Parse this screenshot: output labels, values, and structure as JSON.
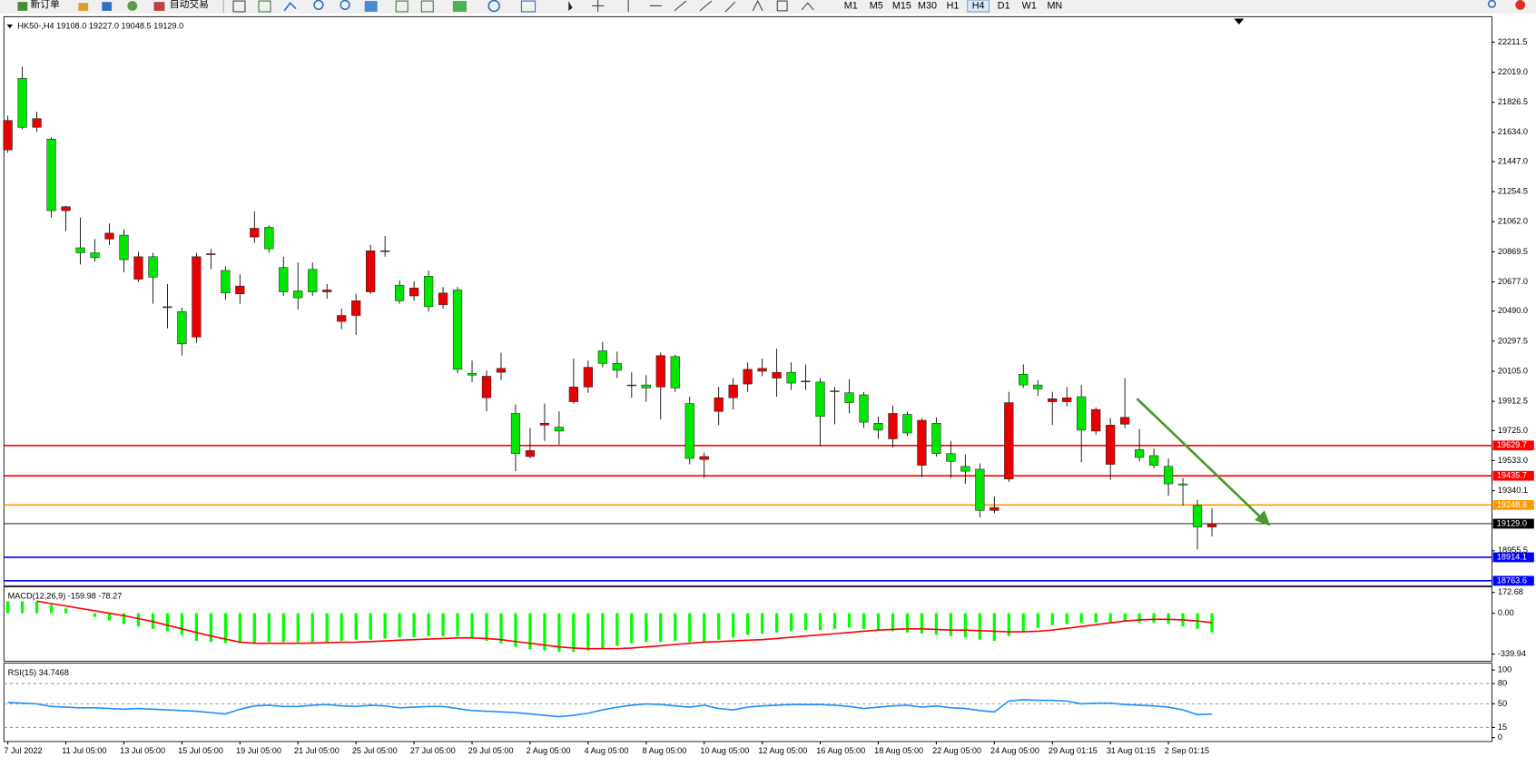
{
  "toolbar": {
    "new_order": "新订单",
    "auto_trading": "自动交易",
    "timeframes": [
      "M1",
      "M5",
      "M15",
      "M30",
      "H1",
      "H4",
      "D1",
      "W1",
      "MN"
    ],
    "active_timeframe": 5
  },
  "chart_data": [
    {
      "type": "candlestick",
      "title": "HK50-,H4  19108.0 19227.0 19048.5 19129.0",
      "bull_color": "#e60000",
      "bear_color": "#00e600",
      "ylim": [
        18731.7,
        22374.5
      ],
      "yticks": [
        22211.5,
        {
          "value": 22019,
          "label": "22019.0"
        },
        21826.5,
        {
          "value": 21634,
          "label": "21634.0"
        },
        {
          "value": 21447,
          "label": "21447.0"
        },
        21254.5,
        {
          "value": 21062,
          "label": "21062.0"
        },
        20869.5,
        {
          "value": 20677,
          "label": "20677.0"
        },
        {
          "value": 20490,
          "label": "20490.0"
        },
        20297.5,
        {
          "value": 20105,
          "label": "20105.0"
        },
        19912.5,
        {
          "value": 19725,
          "label": "19725.0"
        },
        {
          "value": 19533,
          "label": "19533.0"
        },
        19340.1,
        18955.5
      ],
      "levels": [
        {
          "value": 19629.7,
          "color": "#ff0000"
        },
        {
          "value": 19435.7,
          "color": "#ff0000"
        },
        {
          "value": 19248.8,
          "color": "#ff9900"
        },
        {
          "value": 19129,
          "label": "19129.0",
          "color": "#000000"
        },
        {
          "value": 18914.1,
          "color": "#0000ff"
        },
        {
          "value": 18763.6,
          "color": "#0000ff"
        }
      ],
      "categories": [
        "7 Jul 2022",
        null,
        null,
        null,
        "11 Jul 05:00",
        null,
        null,
        null,
        "13 Jul 05:00",
        null,
        null,
        null,
        "15 Jul 05:00",
        null,
        null,
        null,
        "19 Jul 05:00",
        null,
        null,
        null,
        "21 Jul 05:00",
        null,
        null,
        null,
        "25 Jul 05:00",
        null,
        null,
        null,
        "27 Jul 05:00",
        null,
        null,
        null,
        "29 Jul 05:00",
        null,
        null,
        null,
        "2 Aug 05:00",
        null,
        null,
        null,
        "4 Aug 05:00",
        null,
        null,
        null,
        "8 Aug 05:00",
        null,
        null,
        null,
        "10 Aug 05:00",
        null,
        null,
        null,
        "12 Aug 05:00",
        null,
        null,
        null,
        "16 Aug 05:00",
        null,
        null,
        null,
        "18 Aug 05:00",
        null,
        null,
        null,
        "22 Aug 05:00",
        null,
        null,
        null,
        "24 Aug 05:00",
        null,
        null,
        null,
        "29 Aug 01:15",
        null,
        null,
        null,
        "31 Aug 01:15",
        null,
        null,
        null,
        "2 Sep 01:15",
        null,
        null,
        null
      ],
      "ohlc": [
        [
          21522,
          21741,
          21503,
          21710
        ],
        [
          21979,
          22055,
          21653,
          21666
        ],
        [
          21666,
          21766,
          21635,
          21722
        ],
        [
          21591,
          21603,
          21089,
          21133
        ],
        [
          21133,
          21164,
          21001,
          21158
        ],
        [
          20895,
          21089,
          20788,
          20863
        ],
        [
          20863,
          20951,
          20807,
          20832
        ],
        [
          20951,
          21051,
          20913,
          20989
        ],
        [
          20976,
          21014,
          20738,
          20819
        ],
        [
          20694,
          20870,
          20675,
          20838
        ],
        [
          20838,
          20863,
          20537,
          20707
        ],
        [
          20512,
          20663,
          20380,
          20518
        ],
        [
          20487,
          20512,
          20205,
          20280
        ],
        [
          20324,
          20863,
          20286,
          20838
        ],
        [
          20851,
          20888,
          20757,
          20857
        ],
        [
          20750,
          20776,
          20562,
          20606
        ],
        [
          20600,
          20725,
          20537,
          20650
        ],
        [
          20964,
          21127,
          20926,
          21020
        ],
        [
          21026,
          21039,
          20863,
          20888
        ],
        [
          20769,
          20838,
          20587,
          20613
        ],
        [
          20619,
          20801,
          20500,
          20575
        ],
        [
          20757,
          20801,
          20587,
          20613
        ],
        [
          20613,
          20663,
          20569,
          20625
        ],
        [
          20424,
          20506,
          20374,
          20462
        ],
        [
          20462,
          20600,
          20337,
          20556
        ],
        [
          20613,
          20913,
          20600,
          20876
        ],
        [
          20876,
          20970,
          20838,
          20876
        ],
        [
          20656,
          20688,
          20537,
          20556
        ],
        [
          20587,
          20681,
          20556,
          20638
        ],
        [
          20713,
          20750,
          20487,
          20518
        ],
        [
          20531,
          20644,
          20506,
          20606
        ],
        [
          20625,
          20644,
          20092,
          20117
        ],
        [
          20092,
          20174,
          20036,
          20080
        ],
        [
          19935,
          20111,
          19848,
          20073
        ],
        [
          20098,
          20224,
          20048,
          20123
        ],
        [
          19835,
          19892,
          19465,
          19578
        ],
        [
          19559,
          19741,
          19547,
          19597
        ],
        [
          19760,
          19898,
          19659,
          19772
        ],
        [
          19747,
          19848,
          19634,
          19722
        ],
        [
          19910,
          20186,
          19898,
          20004
        ],
        [
          20004,
          20174,
          19967,
          20130
        ],
        [
          20236,
          20293,
          20130,
          20155
        ],
        [
          20155,
          20230,
          20061,
          20111
        ],
        [
          20017,
          20098,
          19935,
          20017
        ],
        [
          20017,
          20080,
          19910,
          19998
        ],
        [
          20004,
          20224,
          19797,
          20205
        ],
        [
          20199,
          20211,
          19973,
          19998
        ],
        [
          19898,
          19942,
          19509,
          19547
        ],
        [
          19540,
          19584,
          19421,
          19559
        ],
        [
          19848,
          20004,
          19760,
          19935
        ],
        [
          19935,
          20061,
          19860,
          20017
        ],
        [
          20023,
          20161,
          19973,
          20117
        ],
        [
          20105,
          20186,
          20073,
          20123
        ],
        [
          20061,
          20249,
          19942,
          20098
        ],
        [
          20098,
          20161,
          19986,
          20029
        ],
        [
          20042,
          20149,
          19986,
          20042
        ],
        [
          20036,
          20061,
          19628,
          19816
        ],
        [
          19979,
          20004,
          19766,
          19979
        ],
        [
          19967,
          20055,
          19835,
          19904
        ],
        [
          19954,
          19973,
          19741,
          19779
        ],
        [
          19772,
          19816,
          19672,
          19728
        ],
        [
          19672,
          19885,
          19616,
          19835
        ],
        [
          19829,
          19848,
          19691,
          19710
        ],
        [
          19503,
          19804,
          19428,
          19791
        ],
        [
          19772,
          19810,
          19559,
          19578
        ],
        [
          19578,
          19659,
          19421,
          19528
        ],
        [
          19496,
          19572,
          19384,
          19465
        ],
        [
          19478,
          19515,
          19170,
          19214
        ],
        [
          19214,
          19302,
          19196,
          19233
        ],
        [
          19415,
          19973,
          19396,
          19904
        ],
        [
          20086,
          20149,
          19998,
          20017
        ],
        [
          20017,
          20048,
          19948,
          19992
        ],
        [
          19910,
          19973,
          19760,
          19929
        ],
        [
          19910,
          20004,
          19879,
          19935
        ],
        [
          19942,
          20017,
          19522,
          19728
        ],
        [
          19722,
          19873,
          19697,
          19860
        ],
        [
          19509,
          19804,
          19409,
          19760
        ],
        [
          19766,
          20061,
          19741,
          19810
        ],
        [
          19603,
          19735,
          19528,
          19553
        ],
        [
          19565,
          19609,
          19484,
          19503
        ],
        [
          19496,
          19547,
          19308,
          19384
        ],
        [
          19384,
          19421,
          19246,
          19377
        ],
        [
          19246,
          19283,
          18964,
          19108
        ],
        [
          19108,
          19227,
          19048.5,
          19129
        ]
      ]
    },
    {
      "type": "macd",
      "title": "MACD(12,26,9) -159.98 -78.27",
      "ylim": [
        -399,
        220
      ],
      "yticks": [
        172.68,
        {
          "value": 0,
          "label": "0.00"
        },
        -339.94
      ],
      "histogram": {
        "color": "#00ff00",
        "values": [
          100,
          100,
          95,
          70,
          40,
          0,
          -30,
          -60,
          -90,
          -110,
          -130,
          -150,
          -180,
          -230,
          -240,
          -250,
          -250,
          -250,
          -240,
          -240,
          -240,
          -240,
          -240,
          -230,
          -220,
          -220,
          -210,
          -200,
          -200,
          -190,
          -190,
          -190,
          -200,
          -230,
          -250,
          -280,
          -300,
          -310,
          -320,
          -320,
          -310,
          -290,
          -270,
          -250,
          -240,
          -240,
          -230,
          -240,
          -240,
          -220,
          -200,
          -180,
          -170,
          -160,
          -150,
          -140,
          -140,
          -130,
          -120,
          -130,
          -140,
          -150,
          -160,
          -170,
          -180,
          -190,
          -200,
          -220,
          -230,
          -190,
          -150,
          -120,
          -100,
          -90,
          -80,
          -80,
          -80,
          -70,
          -80,
          -80,
          -90,
          -110,
          -130,
          -159.98
        ]
      },
      "signal": {
        "color": "#ff0000",
        "values": [
          null,
          null,
          100,
          80,
          60,
          40,
          20,
          0,
          -20,
          -45,
          -70,
          -100,
          -130,
          -160,
          -190,
          -215,
          -240,
          -250,
          -250,
          -250,
          -250,
          -248,
          -245,
          -242,
          -240,
          -235,
          -230,
          -225,
          -220,
          -215,
          -210,
          -205,
          -205,
          -210,
          -220,
          -235,
          -250,
          -265,
          -280,
          -290,
          -295,
          -295,
          -295,
          -290,
          -280,
          -270,
          -260,
          -250,
          -240,
          -235,
          -230,
          -225,
          -220,
          -210,
          -200,
          -190,
          -180,
          -170,
          -160,
          -150,
          -140,
          -135,
          -130,
          -130,
          -135,
          -140,
          -140,
          -145,
          -150,
          -155,
          -155,
          -150,
          -140,
          -125,
          -110,
          -95,
          -80,
          -65,
          -55,
          -50,
          -50,
          -55,
          -65,
          -78.27
        ]
      }
    },
    {
      "type": "line",
      "title": "RSI(15) 34.7468",
      "ylim": [
        -5.8,
        110.1
      ],
      "yticks": [
        100,
        80,
        50,
        15,
        0
      ],
      "levels": [
        80,
        50,
        15
      ],
      "color": "#1e90ff",
      "values": [
        52,
        51,
        50,
        46,
        45,
        44,
        44,
        43,
        42,
        43,
        42,
        41,
        40,
        39,
        37,
        35,
        42,
        47,
        48,
        46,
        46,
        48,
        49,
        47,
        46,
        48,
        47,
        44,
        45,
        46,
        46,
        43,
        40,
        39,
        38,
        37,
        35,
        33,
        31,
        33,
        36,
        41,
        45,
        48,
        50,
        49,
        47,
        45,
        48,
        43,
        41,
        45,
        47,
        48,
        49,
        49,
        49,
        48,
        46,
        43,
        45,
        47,
        48,
        45,
        47,
        44,
        43,
        40,
        38,
        54,
        56,
        55,
        55,
        54,
        50,
        51,
        51,
        49,
        48,
        47,
        45,
        41,
        34,
        34.7468
      ]
    }
  ]
}
